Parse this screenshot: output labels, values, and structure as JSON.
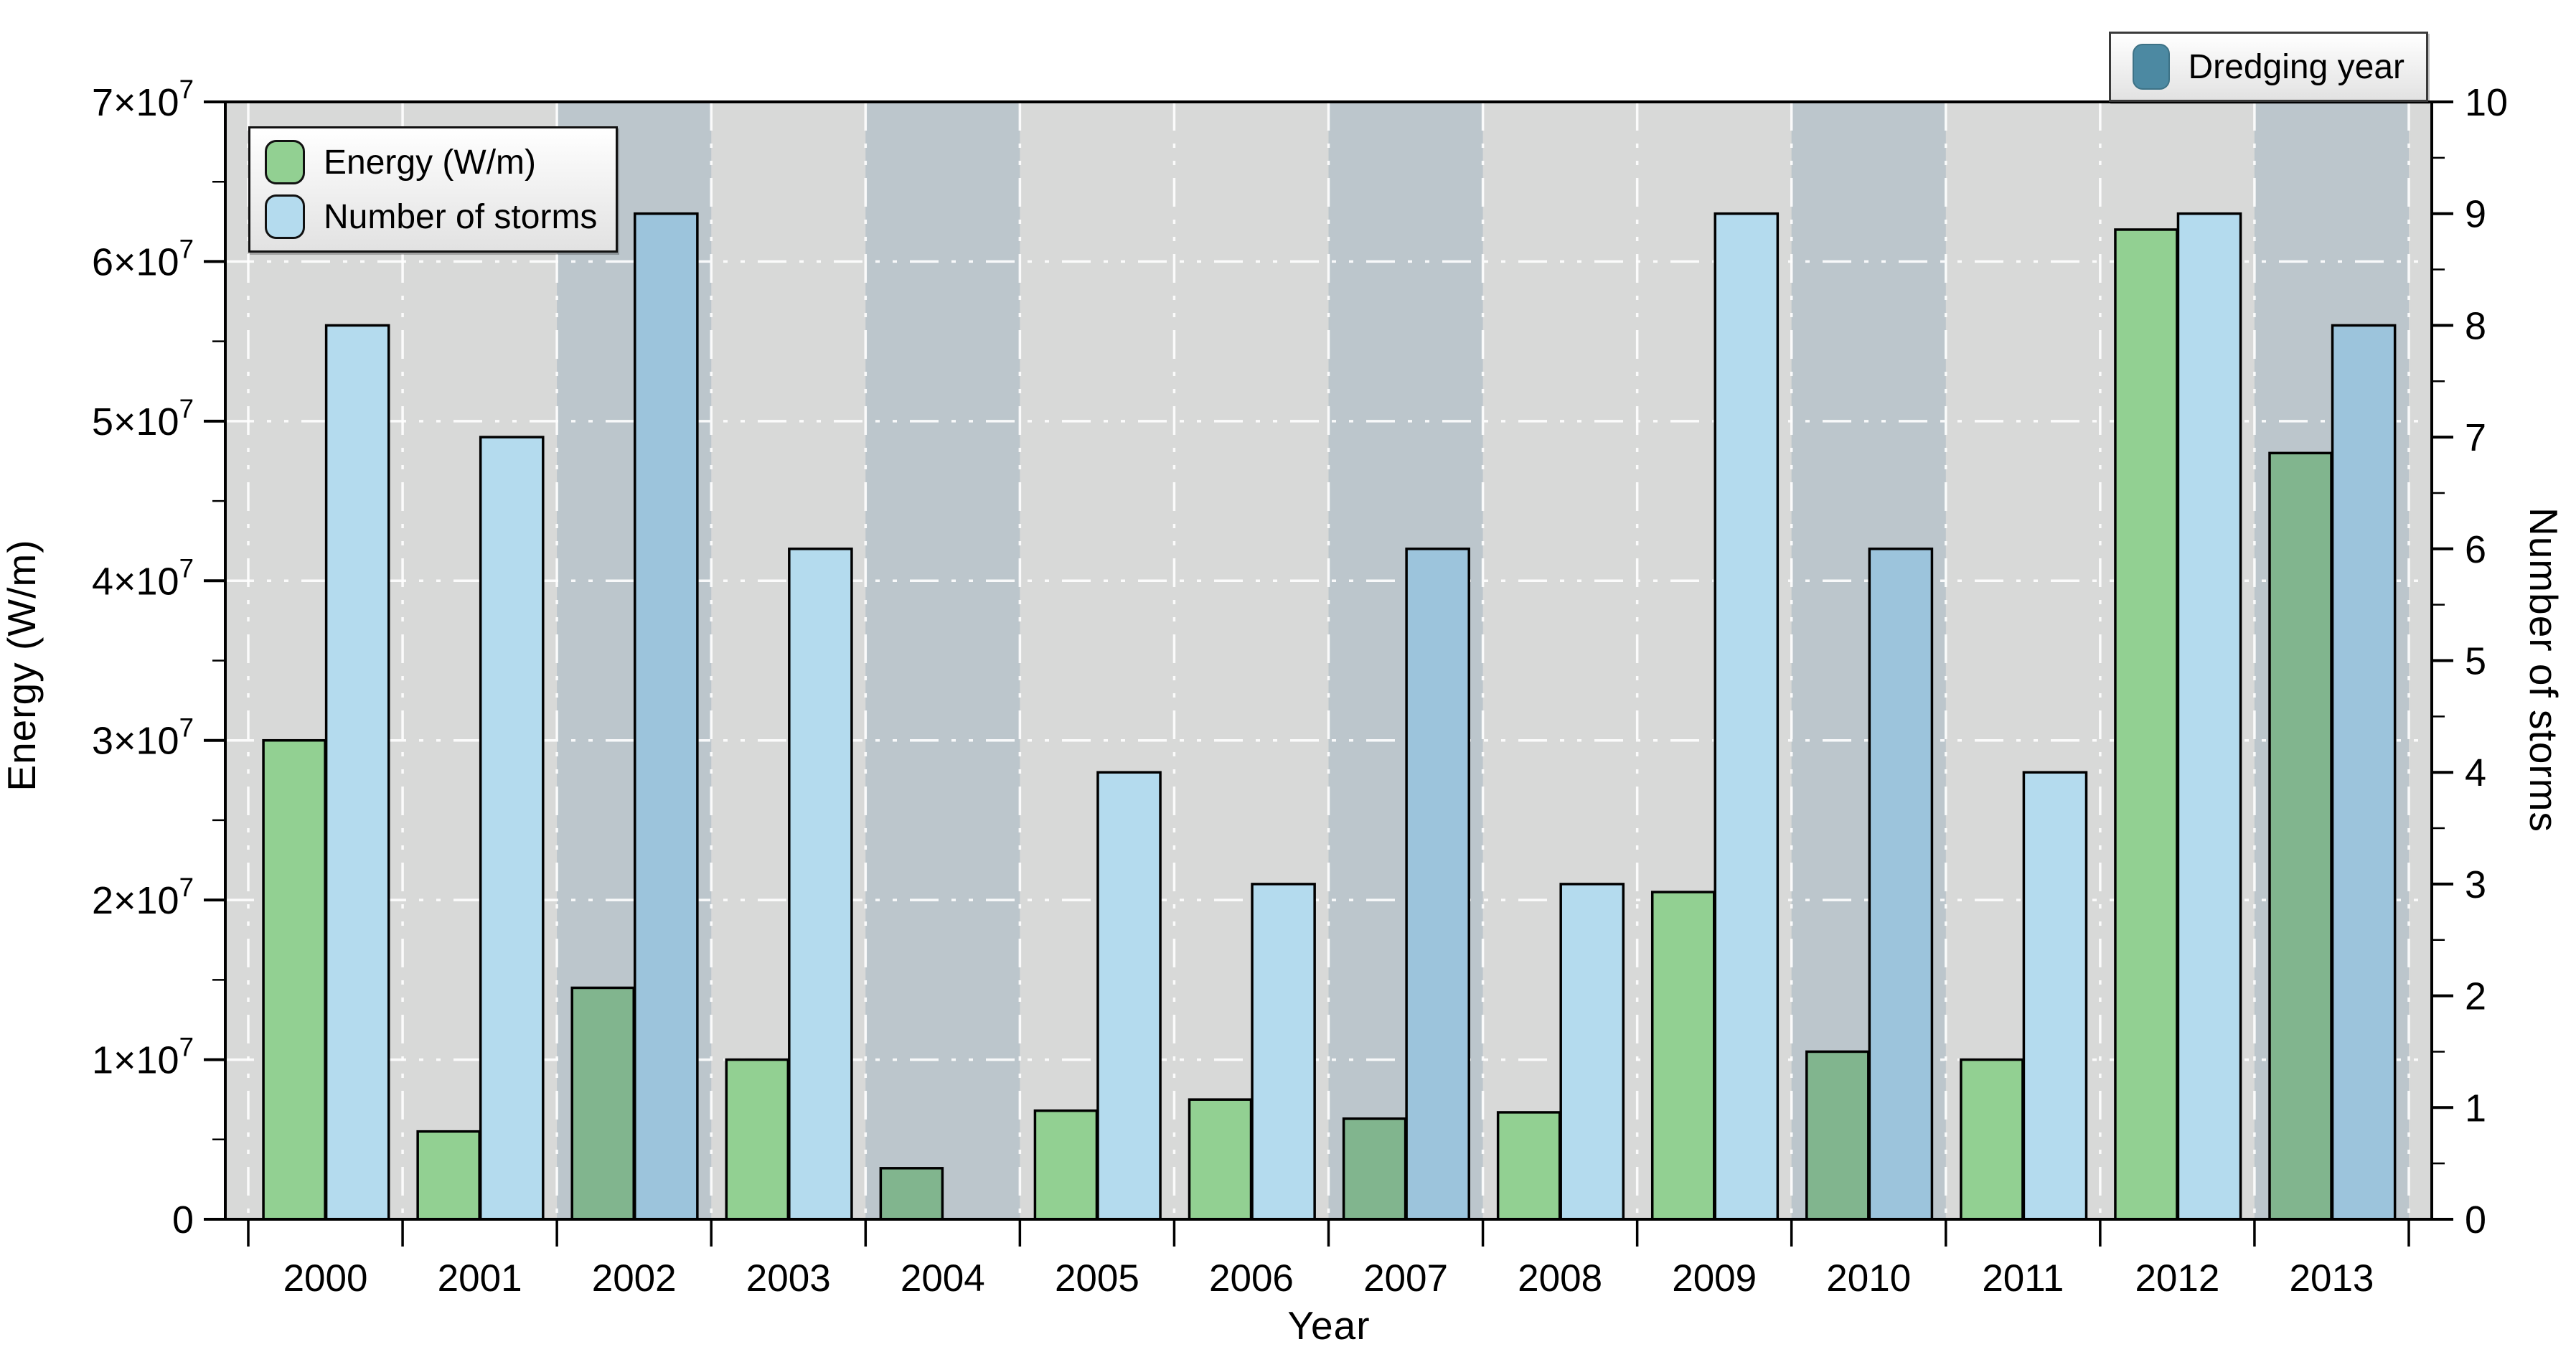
{
  "chart_data": {
    "type": "bar",
    "title": "",
    "categories": [
      "2000",
      "2001",
      "2002",
      "2003",
      "2004",
      "2005",
      "2006",
      "2007",
      "2008",
      "2009",
      "2010",
      "2011",
      "2012",
      "2013"
    ],
    "series": [
      {
        "name": "Energy (W/m)",
        "axis": "left",
        "values": [
          30000000,
          5500000,
          14500000,
          10000000,
          3200000,
          6800000,
          7500000,
          6300000,
          6700000,
          20500000,
          10500000,
          10000000,
          62000000,
          48000000
        ]
      },
      {
        "name": "Number of storms",
        "axis": "right",
        "values": [
          8,
          7,
          9,
          6,
          0,
          4,
          3,
          6,
          3,
          9,
          6,
          4,
          9,
          8
        ]
      }
    ],
    "dredging_years": [
      "2002",
      "2004",
      "2007",
      "2010",
      "2013"
    ],
    "left_axis": {
      "label": "Energy (W/m)",
      "min": 0,
      "max": 70000000,
      "tick_labels": [
        "0",
        "1×10^7",
        "2×10^7",
        "3×10^7",
        "4×10^7",
        "5×10^7",
        "6×10^7",
        "7×10^7"
      ]
    },
    "right_axis": {
      "label": "Number of storms",
      "min": 0,
      "max": 10,
      "tick_labels": [
        "0",
        "1",
        "2",
        "3",
        "4",
        "5",
        "6",
        "7",
        "8",
        "9",
        "10"
      ]
    },
    "x_axis": {
      "label": "Year"
    },
    "legend": [
      {
        "label": "Energy (W/m)",
        "color": "#92d092"
      },
      {
        "label": "Number of storms",
        "color": "#b4dbee"
      }
    ],
    "dredging_legend": {
      "label": "Dredging year",
      "color": "#4c89a2"
    },
    "colors": {
      "plot_background": "#d8d9d8",
      "dredging_band": "#bcc6cc",
      "energy_bar": "#92d092",
      "energy_bar_dredging": "#81b58e",
      "storms_bar": "#b4dbee",
      "storms_bar_dredging": "#9cc4dc",
      "bar_outline": "#000000",
      "gridline": "#ffffff",
      "axis": "#000000"
    },
    "layout_hints": {
      "grid": "dash-dot white, horizontal at each 1e7, vertical at year boundaries",
      "legend_position": "upper-left inside plot; dredging legend upper-right above plot"
    }
  }
}
